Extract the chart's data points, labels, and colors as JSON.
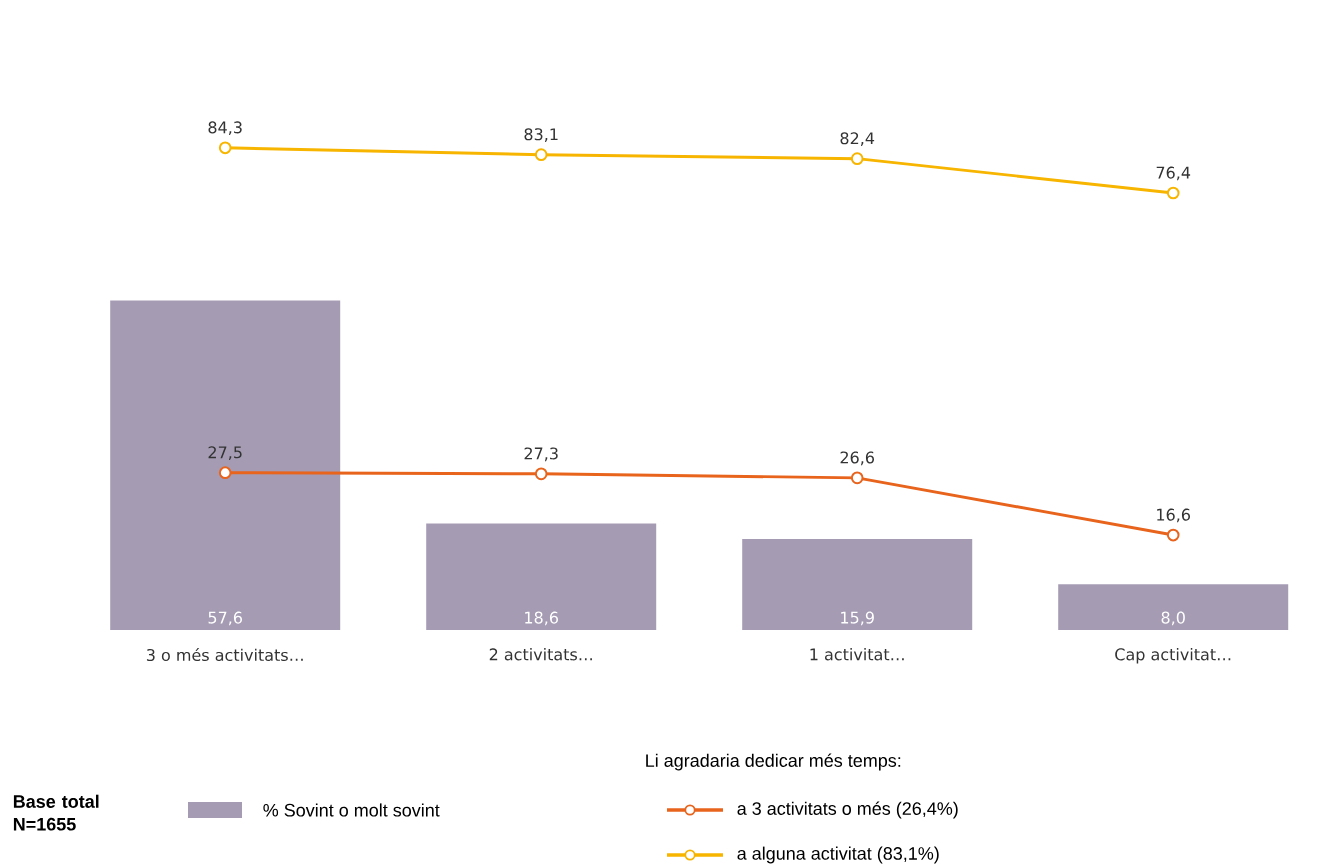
{
  "chart_data": {
    "type": "bar",
    "categories": [
      "3 o més activitats…",
      "2 activitats…",
      "1 activitat…",
      "Cap activitat…"
    ],
    "series": [
      {
        "name": "% Sovint o molt sovint",
        "color": "#a59cb4",
        "values": [
          57.6,
          18.6,
          15.9,
          8.0
        ],
        "value_labels": [
          "57,6",
          "18,6",
          "15,9",
          "8,0"
        ]
      },
      {
        "name": "a 3 activitats o més (26,4%)",
        "type": "line",
        "color": "#e8631c",
        "values": [
          27.5,
          27.3,
          26.6,
          16.6
        ],
        "value_labels": [
          "27,5",
          "27,3",
          "26,6",
          "16,6"
        ]
      },
      {
        "name": "a alguna activitat (83,1%)",
        "type": "line",
        "color": "#f7b500",
        "values": [
          84.3,
          83.1,
          82.4,
          76.4
        ],
        "value_labels": [
          "84,3",
          "83,1",
          "82,4",
          "76,4"
        ]
      }
    ],
    "legend": "bottom",
    "legend_title": "Li agradaria dedicar més temps:",
    "marker": "circle",
    "tick_labels": "x",
    "annotations": [
      "Base total N=1655"
    ]
  }
}
